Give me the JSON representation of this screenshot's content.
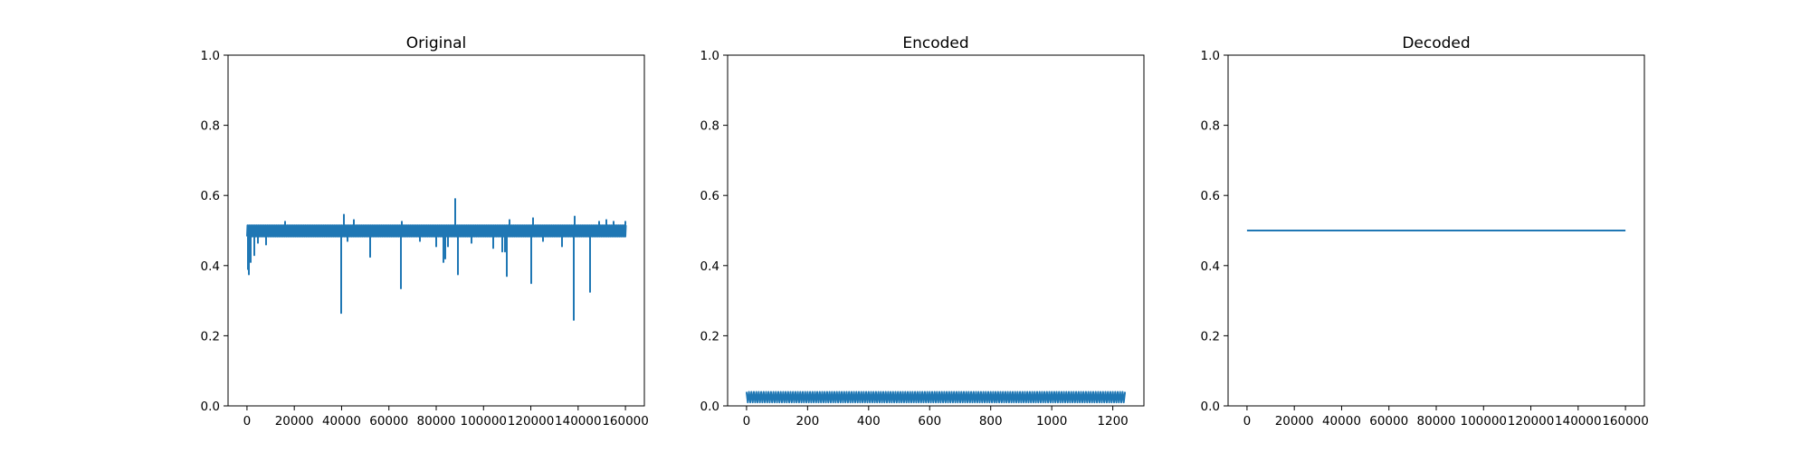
{
  "figure": {
    "background": "#ffffff",
    "line_color": "#1f77b4",
    "axes_color": "#000000"
  },
  "chart_data": [
    {
      "type": "line",
      "title": "Original",
      "xlim": [
        -8000,
        168000
      ],
      "ylim": [
        0,
        1.0
      ],
      "xticks": [
        0,
        20000,
        40000,
        60000,
        80000,
        100000,
        120000,
        140000,
        160000
      ],
      "yticks": [
        0.0,
        0.2,
        0.4,
        0.6,
        0.8,
        1.0
      ],
      "grid": false,
      "series": [
        {
          "color": "#1f77b4",
          "x_range": [
            0,
            160000
          ],
          "band": [
            0.483,
            0.515
          ],
          "spikes": [
            [
              500,
              0.585
            ],
            [
              600,
              0.39
            ],
            [
              900,
              0.375
            ],
            [
              1400,
              0.41
            ],
            [
              3000,
              0.43
            ],
            [
              4500,
              0.465
            ],
            [
              8000,
              0.46
            ],
            [
              16000,
              0.43
            ],
            [
              16200,
              0.525
            ],
            [
              40000,
              0.265
            ],
            [
              41000,
              0.545
            ],
            [
              42500,
              0.47
            ],
            [
              45000,
              0.53
            ],
            [
              52000,
              0.425
            ],
            [
              65000,
              0.335
            ],
            [
              65500,
              0.525
            ],
            [
              73000,
              0.47
            ],
            [
              80000,
              0.455
            ],
            [
              83000,
              0.41
            ],
            [
              84000,
              0.42
            ],
            [
              85000,
              0.455
            ],
            [
              88000,
              0.59
            ],
            [
              89000,
              0.375
            ],
            [
              95000,
              0.465
            ],
            [
              104000,
              0.45
            ],
            [
              108000,
              0.44
            ],
            [
              109000,
              0.44
            ],
            [
              110000,
              0.37
            ],
            [
              111000,
              0.53
            ],
            [
              120000,
              0.35
            ],
            [
              121000,
              0.535
            ],
            [
              125000,
              0.47
            ],
            [
              133000,
              0.455
            ],
            [
              138000,
              0.245
            ],
            [
              138500,
              0.54
            ],
            [
              145000,
              0.325
            ],
            [
              149000,
              0.525
            ],
            [
              152000,
              0.53
            ],
            [
              155000,
              0.525
            ],
            [
              160000,
              0.525
            ]
          ]
        }
      ]
    },
    {
      "type": "line",
      "title": "Encoded",
      "xlim": [
        -62,
        1302
      ],
      "ylim": [
        0,
        1.0
      ],
      "xticks": [
        0,
        200,
        400,
        600,
        800,
        1000,
        1200
      ],
      "yticks": [
        0.0,
        0.2,
        0.4,
        0.6,
        0.8,
        1.0
      ],
      "grid": false,
      "series": [
        {
          "color": "#1f77b4",
          "x_range": [
            0,
            1240
          ],
          "oscillation": {
            "low": 0.01,
            "high": 0.04,
            "period": 8
          }
        }
      ]
    },
    {
      "type": "line",
      "title": "Decoded",
      "xlim": [
        -8000,
        168000
      ],
      "ylim": [
        0,
        1.0
      ],
      "xticks": [
        0,
        20000,
        40000,
        60000,
        80000,
        100000,
        120000,
        140000,
        160000
      ],
      "yticks": [
        0.0,
        0.2,
        0.4,
        0.6,
        0.8,
        1.0
      ],
      "grid": false,
      "series": [
        {
          "color": "#1f77b4",
          "x": [
            0,
            160000
          ],
          "y": [
            0.5,
            0.5
          ]
        }
      ]
    }
  ]
}
